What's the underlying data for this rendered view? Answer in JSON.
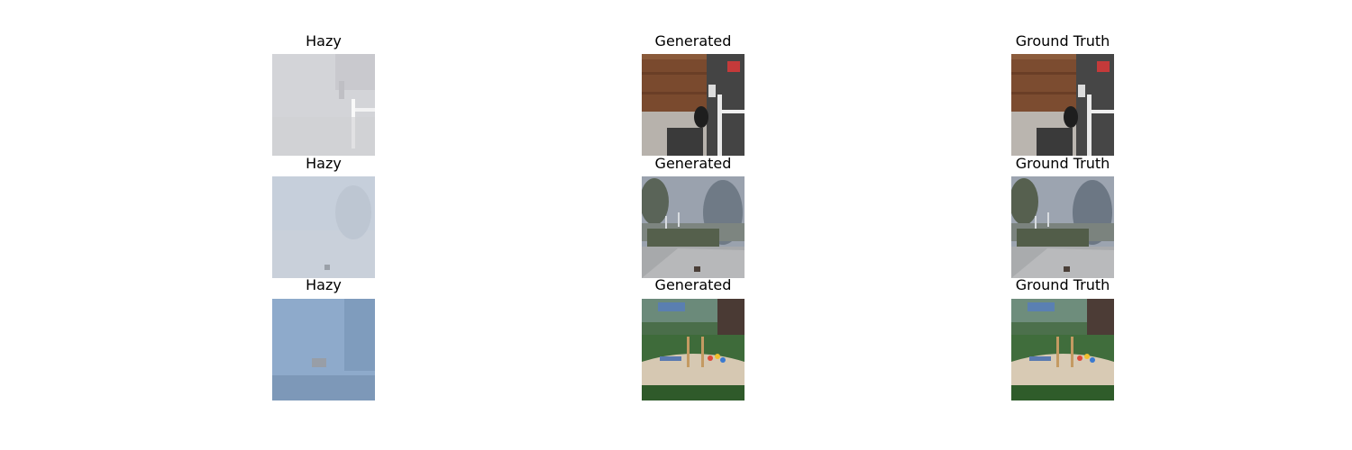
{
  "figure": {
    "rows": [
      {
        "panels": [
          {
            "title": "Hazy",
            "scene": "indoor-hazy"
          },
          {
            "title": "Generated",
            "scene": "indoor-clear"
          },
          {
            "title": "Ground Truth",
            "scene": "indoor-clear"
          }
        ]
      },
      {
        "panels": [
          {
            "title": "Hazy",
            "scene": "garden-hazy"
          },
          {
            "title": "Generated",
            "scene": "garden-clear"
          },
          {
            "title": "Ground Truth",
            "scene": "garden-clear"
          }
        ]
      },
      {
        "panels": [
          {
            "title": "Hazy",
            "scene": "playground-hazy"
          },
          {
            "title": "Generated",
            "scene": "playground-clear"
          },
          {
            "title": "Ground Truth",
            "scene": "playground-clear"
          }
        ]
      }
    ]
  }
}
